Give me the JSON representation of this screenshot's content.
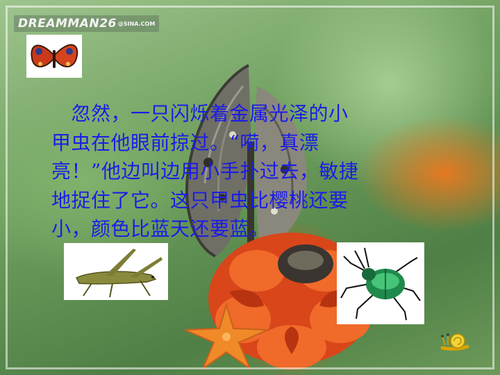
{
  "slide": {
    "logo": {
      "main": "DREAMMAN26",
      "sub": "@SINA.COM"
    },
    "story_lines": [
      "　忽然，一只闪烁着金属光泽的小",
      "甲虫在他眼前掠过。“嗬，真漂",
      "亮！”他边叫边用小手扑过去，敏捷",
      "地捉住了它。这只甲虫比樱桃还要",
      "小，颜色比蓝天还要蓝。"
    ],
    "icons": {
      "butterfly": "butterfly-icon",
      "grasshopper": "grasshopper-icon",
      "beetle": "beetle-icon",
      "snail": "snail-icon",
      "starfish": "starfish-icon",
      "flower": "marigold-flower-icon"
    },
    "colors": {
      "text": "#1c1ce6",
      "accent": "#e4601e"
    }
  }
}
